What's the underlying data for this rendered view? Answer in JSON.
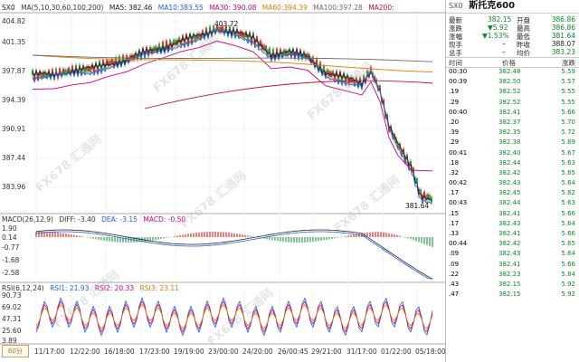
{
  "symbol": {
    "code": "SX0",
    "name": "斯托克600"
  },
  "ma_legend": {
    "ma_title": "MA(5,10,30,60,100,200)",
    "ma5": "MA5: 382.46",
    "ma10": "MA10:383.55",
    "ma30": "MA30: 390.08",
    "ma60": "MA60:394.39",
    "ma100": "MA100:397.28",
    "ma200": "MA200:",
    "colors": {
      "ma5": "#222222",
      "ma10": "#1e5fd8",
      "ma30": "#d4007a",
      "ma60": "#e07b00",
      "ma100": "#6b6b6b",
      "ma200": "#c8102e"
    }
  },
  "price_axis": [
    "404.82",
    "401.35",
    "397.87",
    "394.39",
    "390.91",
    "387.44",
    "383.96"
  ],
  "annotations": {
    "high": "403.72",
    "low": "381.64"
  },
  "macd": {
    "legend": [
      "MACD(26,12,9)",
      "DIFF: -3.40",
      "DEA: -3.15",
      "MACD: -0.50"
    ],
    "axis": [
      "1.90",
      "0.14",
      "-0.77",
      "-1.68",
      "-2.58"
    ]
  },
  "rsi": {
    "legend": [
      "RSI(6,12,24)",
      "RSI1: 21.93",
      "RSI2: 20.33",
      "RSI3: 23.11"
    ],
    "axis": [
      "90.73",
      "69.02",
      "47.31",
      "25.60",
      "3.89"
    ]
  },
  "x_axis": [
    "11/17:00",
    "12/22:00",
    "16/18:00",
    "17/23:00",
    "19/19:00",
    "23/00:00",
    "24/20:00",
    "26/00:45",
    "29/21:00",
    "31/17:00",
    "01/22:00",
    "05/18:00"
  ],
  "period": "60分",
  "watermark": "FX678 汇通网",
  "quote_summary": {
    "row1": {
      "l1": "最新",
      "v1": "382.15",
      "l2": "开盘",
      "v2": "386.86"
    },
    "row2": {
      "l1": "涨跌",
      "v1": "▼5.92",
      "l2": "最高",
      "v2": "386.86"
    },
    "row3": {
      "l1": "涨幅",
      "v1": "▼1.53%",
      "l2": "最低",
      "v2": "381.64"
    },
    "row4": {
      "l1": "现手",
      "v1": "–",
      "l2": "昨收",
      "v2": "388.07"
    },
    "row5": {
      "l1": "总手",
      "v1": "–",
      "l2": "均价",
      "v2": "383.23"
    }
  },
  "tick_headers": {
    "time": "时间",
    "price": "价格",
    "change": "涨跌"
  },
  "ticks": [
    {
      "time": "00:30",
      "price": "382.48",
      "change": "5.59"
    },
    {
      "time": "00:39",
      "price": "382.50",
      "change": "5.57"
    },
    {
      "time": ".19",
      "price": "382.52",
      "change": "5.55"
    },
    {
      "time": ".29",
      "price": "382.52",
      "change": "5.55"
    },
    {
      "time": "00:40",
      "price": "382.41",
      "change": "5.66"
    },
    {
      "time": ".20",
      "price": "382.37",
      "change": "5.70"
    },
    {
      "time": ".39",
      "price": "382.35",
      "change": "5.72"
    },
    {
      "time": ".29",
      "price": "382.38",
      "change": "5.69"
    },
    {
      "time": "00:41",
      "price": "382.40",
      "change": "5.67"
    },
    {
      "time": ".18",
      "price": "382.44",
      "change": "5.63"
    },
    {
      "time": ".32",
      "price": "382.42",
      "change": "5.65"
    },
    {
      "time": "00:42",
      "price": "382.43",
      "change": "5.64"
    },
    {
      "time": ".17",
      "price": "382.45",
      "change": "5.62"
    },
    {
      "time": "00:43",
      "price": "382.44",
      "change": "5.63"
    },
    {
      "time": ".15",
      "price": "382.41",
      "change": "5.66"
    },
    {
      "time": ".17",
      "price": "382.43",
      "change": "5.64"
    },
    {
      "time": ".33",
      "price": "382.41",
      "change": "5.66"
    },
    {
      "time": "00:44",
      "price": "382.42",
      "change": "5.65"
    },
    {
      "time": ".09",
      "price": "382.43",
      "change": "5.64"
    },
    {
      "time": ".09",
      "price": "382.41",
      "change": "5.66"
    },
    {
      "time": ".22",
      "price": "382.23",
      "change": "5.84"
    },
    {
      "time": ".43",
      "price": "382.15",
      "change": "5.92"
    },
    {
      "time": ".47",
      "price": "382.15",
      "change": "5.92"
    }
  ]
}
